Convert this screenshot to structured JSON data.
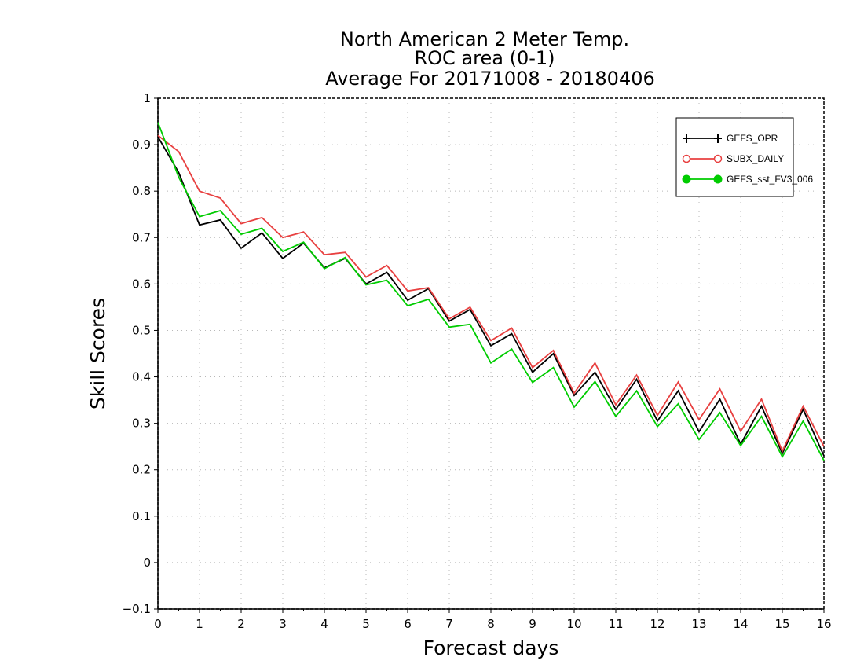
{
  "chart_data": {
    "type": "line",
    "title_lines": [
      "North American 2 Meter Temp.",
      "ROC area (0-1)",
      "Average For 20171008 - 20180406"
    ],
    "xlabel": "Forecast days",
    "ylabel": "Skill Scores",
    "xlim": [
      0,
      16
    ],
    "ylim": [
      -0.1,
      1
    ],
    "x_ticks": [
      "0",
      "1",
      "2",
      "3",
      "4",
      "5",
      "6",
      "7",
      "8",
      "9",
      "10",
      "11",
      "12",
      "13",
      "14",
      "15",
      "16"
    ],
    "y_ticks": [
      "−0.1",
      "0",
      "0.1",
      "0.2",
      "0.3",
      "0.4",
      "0.5",
      "0.6",
      "0.7",
      "0.8",
      "0.9",
      "1"
    ],
    "grid": true,
    "legend_position": "top-right",
    "x": [
      0,
      0.5,
      1,
      1.5,
      2,
      2.5,
      3,
      3.5,
      4,
      4.5,
      5,
      5.5,
      6,
      6.5,
      7,
      7.5,
      8,
      8.5,
      9,
      9.5,
      10,
      10.5,
      11,
      11.5,
      12,
      12.5,
      13,
      13.5,
      14,
      14.5,
      15,
      15.5,
      16
    ],
    "series": [
      {
        "name": "GEFS_OPR",
        "color": "#000000",
        "marker": "plus",
        "values": [
          0.917,
          0.84,
          0.727,
          0.738,
          0.677,
          0.71,
          0.655,
          0.688,
          0.635,
          0.655,
          0.6,
          0.625,
          0.565,
          0.59,
          0.52,
          0.545,
          0.467,
          0.493,
          0.41,
          0.45,
          0.36,
          0.41,
          0.33,
          0.395,
          0.305,
          0.37,
          0.282,
          0.352,
          0.255,
          0.337,
          0.235,
          0.33,
          0.23
        ]
      },
      {
        "name": "SUBX_DAILY",
        "color": "#e84040",
        "marker": "open-circle",
        "values": [
          0.92,
          0.885,
          0.8,
          0.785,
          0.73,
          0.743,
          0.7,
          0.712,
          0.663,
          0.668,
          0.615,
          0.64,
          0.585,
          0.592,
          0.525,
          0.55,
          0.478,
          0.505,
          0.42,
          0.457,
          0.365,
          0.43,
          0.34,
          0.404,
          0.317,
          0.389,
          0.308,
          0.374,
          0.283,
          0.352,
          0.24,
          0.337,
          0.25
        ]
      },
      {
        "name": "GEFS_sst_FV3_006",
        "color": "#00cc00",
        "marker": "filled-circle",
        "values": [
          0.948,
          0.83,
          0.745,
          0.758,
          0.707,
          0.72,
          0.67,
          0.69,
          0.633,
          0.657,
          0.598,
          0.608,
          0.553,
          0.567,
          0.507,
          0.513,
          0.43,
          0.46,
          0.388,
          0.42,
          0.335,
          0.39,
          0.315,
          0.37,
          0.293,
          0.342,
          0.265,
          0.323,
          0.252,
          0.315,
          0.228,
          0.305,
          0.22
        ]
      }
    ]
  }
}
